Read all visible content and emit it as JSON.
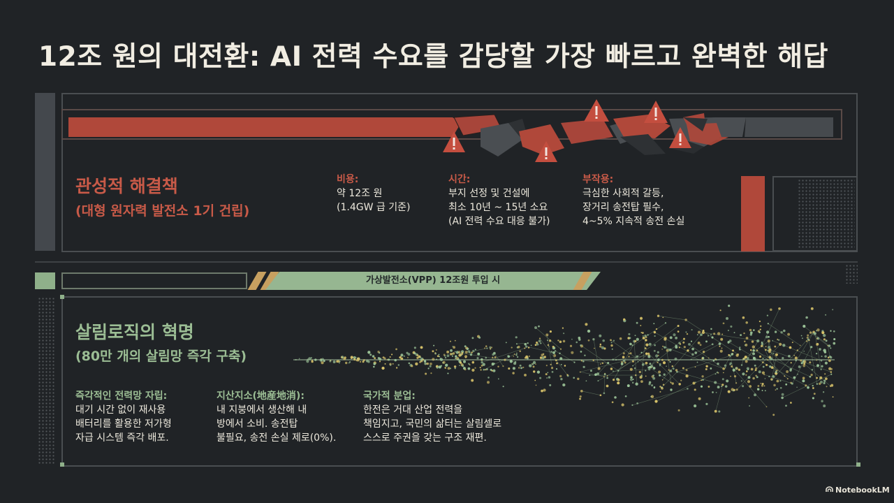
{
  "title": "12조 원의 대전환: AI 전력 수요를 감당할 가장 빠르고 완벽한 해답",
  "traditional": {
    "heading": "관성적 해결책",
    "subheading": "(대형 원자력 발전소 1기 건립)",
    "cost": {
      "label": "비용:",
      "lines": [
        "약 12조 원",
        "(1.4GW 급 기준)"
      ]
    },
    "time": {
      "label": "시간:",
      "lines": [
        "부지 선정 및 건설에",
        "최소 10년 ~ 15년 소요",
        "(AI 전력 수요 대응 불가)"
      ]
    },
    "side_effects": {
      "label": "부작용:",
      "lines": [
        "극심한 사회적 갈등,",
        "장거리 송전탑 필수,",
        "4~5% 지속적 송전 손실"
      ]
    }
  },
  "banner": "가상발전소(VPP) 12조원 투입 시",
  "innovation": {
    "heading": "살림로직의 혁명",
    "subheading": "(80만 개의 살림망 즉각 구축)",
    "immediate": {
      "label": "즉각적인 전력망 자립:",
      "lines": [
        "대기 시간 없이 재사용",
        "배터리를 활용한 저가형",
        "자급 시스템 즉각 배포."
      ]
    },
    "local": {
      "label": "지산지소(地産地消):",
      "lines": [
        "내 지붕에서 생산해 내",
        "방에서 소비. 송전탑",
        "불필요, 송전 손실 제로(0%)."
      ]
    },
    "division": {
      "label": "국가적 분업:",
      "lines": [
        "한전은 거대 산업 전력을",
        "책임지고, 국민의 삶터는 살림셀로",
        "스스로 주권을 갖는 구조 재편."
      ]
    }
  },
  "brand": "NotebookLM",
  "icons": [
    "warning-icon",
    "notebooklm-logo-icon"
  ],
  "colors": {
    "background": "#202326",
    "red": "#c85a48",
    "green": "#9bbd94",
    "gold": "#c7a060"
  }
}
